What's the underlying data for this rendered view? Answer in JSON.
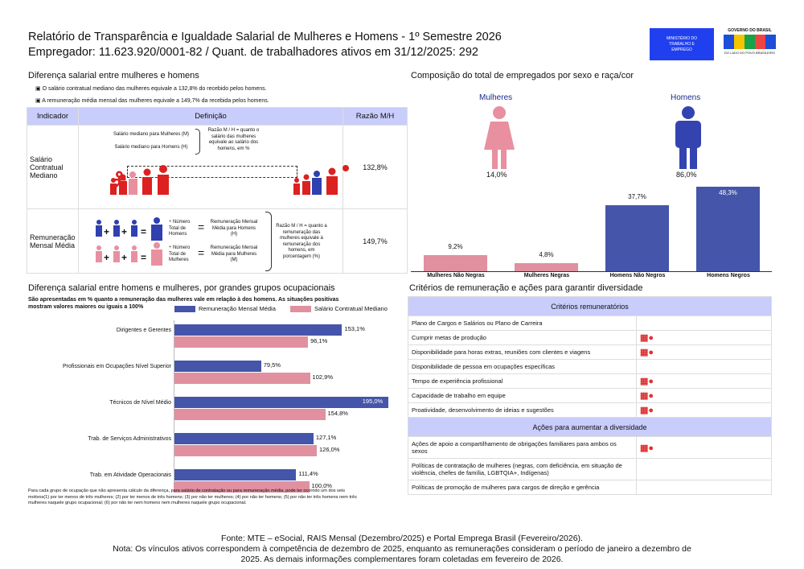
{
  "header": {
    "title": "Relatório de Transparência e Igualdade Salarial de Mulheres e Homens - 1º Semestre 2026",
    "subtitle": "Empregador: 11.623.920/0001-82 / Quant. de trabalhadores ativos em 31/12/2025: 292",
    "logo_ministry": "MINISTÉRIO DO TRABALHO E EMPREGO",
    "logo_gov": "GOVERNO DO BRASIL",
    "logo_gov_tag": "DO LADO DO POVO BRASILEIRO"
  },
  "diff": {
    "title": "Diferença salarial entre mulheres e homens",
    "bullets": [
      "O salário contratual mediano das mulheres equivale a 132,8% do recebido pelos homens.",
      "A remuneração média mensal das mulheres equivale a 149,7% da recebida pelos homens."
    ],
    "headers": [
      "Indicador",
      "Definição",
      "Razão M/H"
    ],
    "row1": {
      "label": "Salário Contratual Mediano",
      "m": "Salário mediano para Mulheres (M)",
      "h": "Salário mediano para Homens (H)",
      "ratio_def": "Razão M / H = quanto o salário das mulheres equivale ao salário dos homens, em %",
      "value": "132,8%"
    },
    "row2": {
      "label": "Remuneração Mensal Média",
      "num_h": "Número Total de Homens",
      "num_m": "Número Total de Mulheres",
      "rem_h": "Remuneração Mensal Média para Homens (H)",
      "rem_m": "Remuneração Mensal Média para Mulheres (M)",
      "ratio_def": "Razão M / H = quanto a remuneração das mulheres equivale à remuneração dos homens, em porcentagem (%)",
      "value": "149,7%"
    }
  },
  "composition": {
    "title": "Composição do total de empregados por sexo e raça/cor",
    "women_label": "Mulheres",
    "men_label": "Homens",
    "women_pct": "14,0%",
    "men_pct": "86,0%"
  },
  "occ": {
    "title": "Diferença salarial entre homens e mulheres, por grandes grupos ocupacionais",
    "subtitle": "São apresentadas em % quanto a remuneração das mulheres vale em relação à dos homens. As situações positivas mostram valores maiores ou iguais a 100%",
    "note": "Para cada grupo de ocupação que não apresenta cálculo da diferença, para salário de contratação ou para remuneração média, pode ter ocorrido um dos seis motivos(1) por ter menos de três mulheres; (2) por ter menos de três homens; (3) por não ter mulheres; (4) por não ter homens; (5) por não ter três homens nem três mulheres naquele grupo ocupacional; (6) por não ter nem homens nem mulheres naquele grupo ocupacional."
  },
  "criteria": {
    "title": "Critérios de remuneração e ações para garantir diversidade",
    "header1": "Critérios remuneratórios",
    "header2": "Ações para aumentar a diversidade",
    "items": [
      {
        "label": "Plano de Cargos e Salários ou Plano de Carreira",
        "checked": false
      },
      {
        "label": "Cumprir metas de produção",
        "checked": true
      },
      {
        "label": "Disponibilidade para horas extras, reuniões com clientes e viagens",
        "checked": true
      },
      {
        "label": "Disponibilidade de pessoa em ocupações específicas",
        "checked": false
      },
      {
        "label": "Tempo de experiência profissional",
        "checked": true
      },
      {
        "label": "Capacidade de trabalho em equipe",
        "checked": true
      },
      {
        "label": "Proatividade, desenvolvimento de ideias e sugestões",
        "checked": true
      }
    ],
    "actions": [
      {
        "label": "Ações de apoio a compartilhamento de obrigações familiares para ambos os sexos",
        "checked": true
      },
      {
        "label": "Políticas de contratação de mulheres (negras, com deficiência, em situação de violência, chefes de família, LGBTQIA+, Indígenas)",
        "checked": false
      },
      {
        "label": "Políticas de promoção de mulheres para cargos de direção e gerência",
        "checked": false
      }
    ]
  },
  "footer": {
    "source": "Fonte: MTE – eSocial, RAIS Mensal (Dezembro/2025) e Portal Emprega Brasil (Fevereiro/2026).",
    "note": "Nota: Os vínculos ativos correspondem à competência de dezembro de 2025, enquanto as remunerações consideram o período de janeiro a dezembro de 2025. As demais informações complementares foram coletadas em fevereiro de 2026."
  },
  "colors": {
    "blue": "#4455aa",
    "pink": "#e0909f",
    "header": "#c9cdfb",
    "red": "#e03030"
  },
  "chart_data": [
    {
      "type": "bar",
      "title": "Composição do total de empregados por sexo e raça/cor",
      "categories": [
        "Mulheres Não Negras",
        "Mulheres Negras",
        "Homens Não Negros",
        "Homens Negros"
      ],
      "values": [
        9.2,
        4.8,
        37.7,
        48.3
      ],
      "labels": [
        "9,2%",
        "4,8%",
        "37,7%",
        "48,3%"
      ],
      "ylim": [
        0,
        50
      ]
    },
    {
      "type": "bar",
      "orientation": "horizontal",
      "title": "Diferença salarial entre homens e mulheres, por grandes grupos ocupacionais",
      "categories": [
        "Dirigentes e Gerentes",
        "Profissionais em Ocupações Nível Superior",
        "Técnicos de Nível Médio",
        "Trab. de Serviços Administrativos",
        "Trab. em Atividade Operacionais"
      ],
      "series": [
        {
          "name": "Remuneração Mensal Média",
          "values": [
            153.1,
            79.5,
            195.0,
            127.1,
            111.4
          ],
          "labels": [
            "153,1%",
            "79,5%",
            "195,0%",
            "127,1%",
            "111,4%"
          ]
        },
        {
          "name": "Salário Contratual Mediano",
          "values": [
            96.1,
            102.9,
            154.8,
            126.0,
            100.0
          ],
          "labels": [
            "96,1%",
            "102,9%",
            "154,8%",
            "126,0%",
            "100,0%"
          ]
        }
      ],
      "legend": "top-right"
    }
  ]
}
